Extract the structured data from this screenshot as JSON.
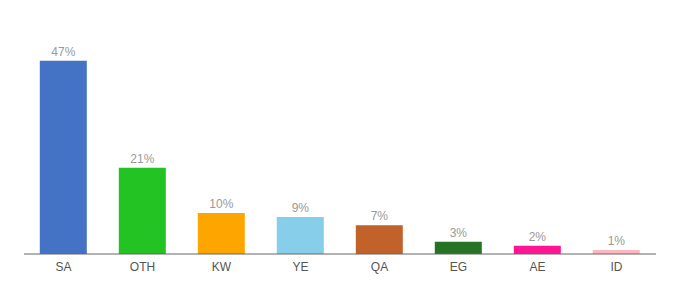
{
  "chart_data": {
    "type": "bar",
    "categories": [
      "SA",
      "OTH",
      "KW",
      "YE",
      "QA",
      "EG",
      "AE",
      "ID"
    ],
    "values": [
      47,
      21,
      10,
      9,
      7,
      3,
      2,
      1
    ],
    "value_labels": [
      "47%",
      "21%",
      "10%",
      "9%",
      "7%",
      "3%",
      "2%",
      "1%"
    ],
    "colors": [
      "#4472C4",
      "#22C322",
      "#FFA500",
      "#87CEEB",
      "#C0622A",
      "#267326",
      "#FF1493",
      "#FFB6C1"
    ],
    "ylim": [
      0,
      54
    ],
    "data_labels": true,
    "tick_labels": "x",
    "grid": false
  }
}
